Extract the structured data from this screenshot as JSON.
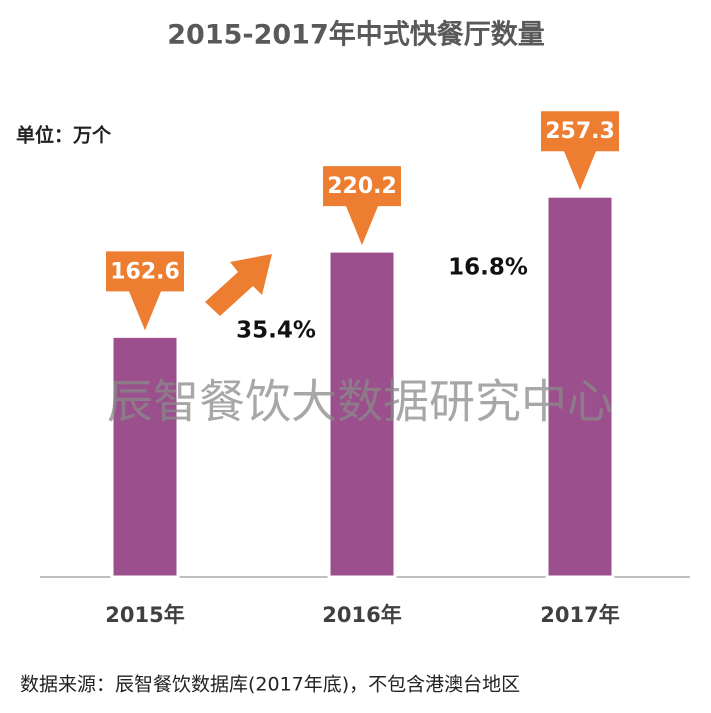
{
  "chart_data": {
    "type": "bar",
    "title": "2015-2017年中式快餐厅数量",
    "unit_label": "单位：万个",
    "categories": [
      "2015年",
      "2016年",
      "2017年"
    ],
    "values": [
      162.6,
      220.2,
      257.3
    ],
    "color": "#9b4f8c",
    "label_color": "#ed7d31",
    "ylim": [
      0,
      300
    ],
    "annotations": [
      "35.4%",
      "16.8%"
    ],
    "watermark": "辰智餐饮大数据研究中心",
    "source": "数据来源：辰智餐饮数据库(2017年底)，不包含港澳台地区"
  }
}
